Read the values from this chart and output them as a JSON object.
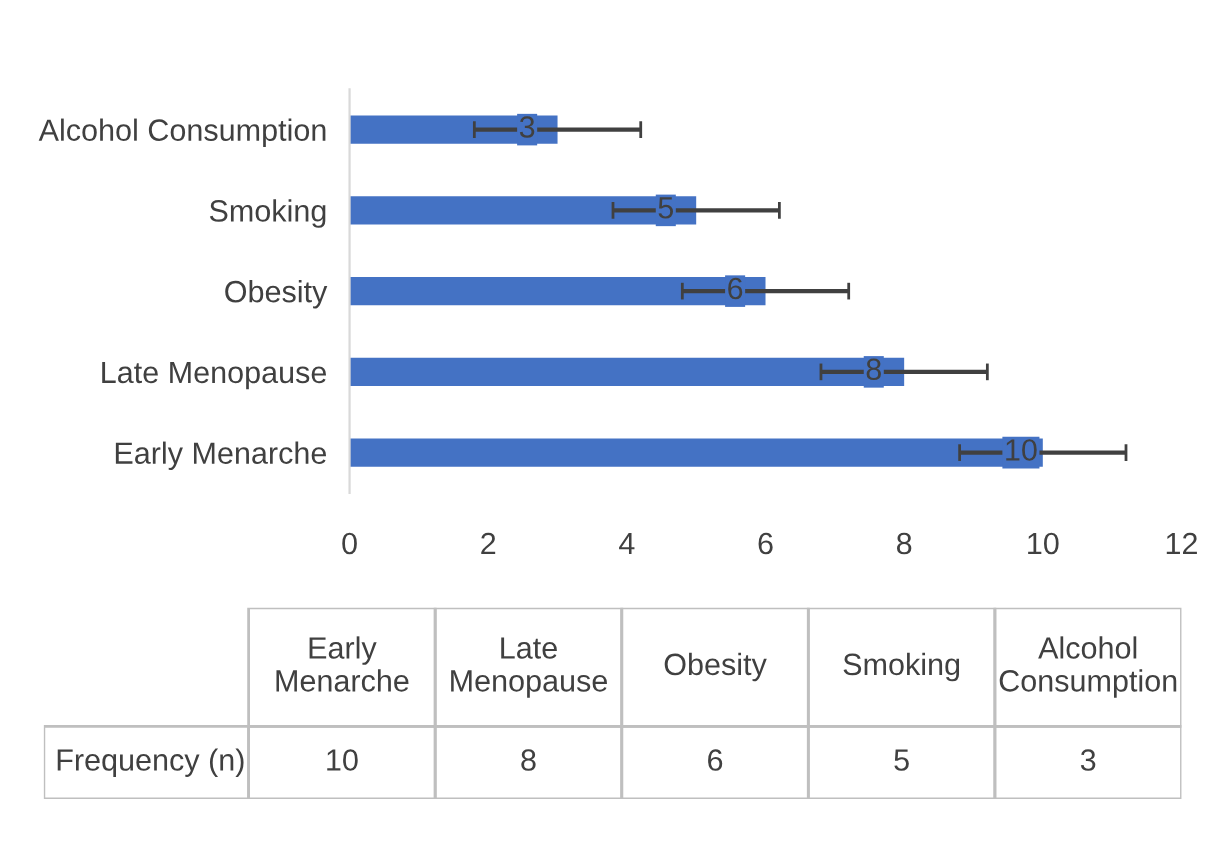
{
  "chart_data": [
    {
      "type": "bar",
      "orientation": "horizontal",
      "categories": [
        "Alcohol Consumption",
        "Smoking",
        "Obesity",
        "Late Menopause",
        "Early Menarche"
      ],
      "series": [
        {
          "color": "#4472c4",
          "values": [
            3,
            5,
            6,
            8,
            10
          ],
          "value_labels": [
            "3",
            "5",
            "6",
            "8",
            "10"
          ],
          "errors": [
            1.2,
            1.2,
            1.2,
            1.2,
            1.2
          ]
        }
      ],
      "xlim": [
        0,
        12
      ],
      "xticks": [
        0,
        2,
        4,
        6,
        8,
        10,
        12
      ],
      "grid": false,
      "legend": false
    },
    {
      "type": "other",
      "categories": [
        "Early Menarche",
        "Late Menopause",
        "Obesity",
        "Smoking",
        "Alcohol Consumption"
      ],
      "series": [
        {
          "name": "Frequency (n)",
          "values": [
            10,
            8,
            6,
            5,
            3
          ]
        }
      ],
      "data_labels": true
    }
  ]
}
